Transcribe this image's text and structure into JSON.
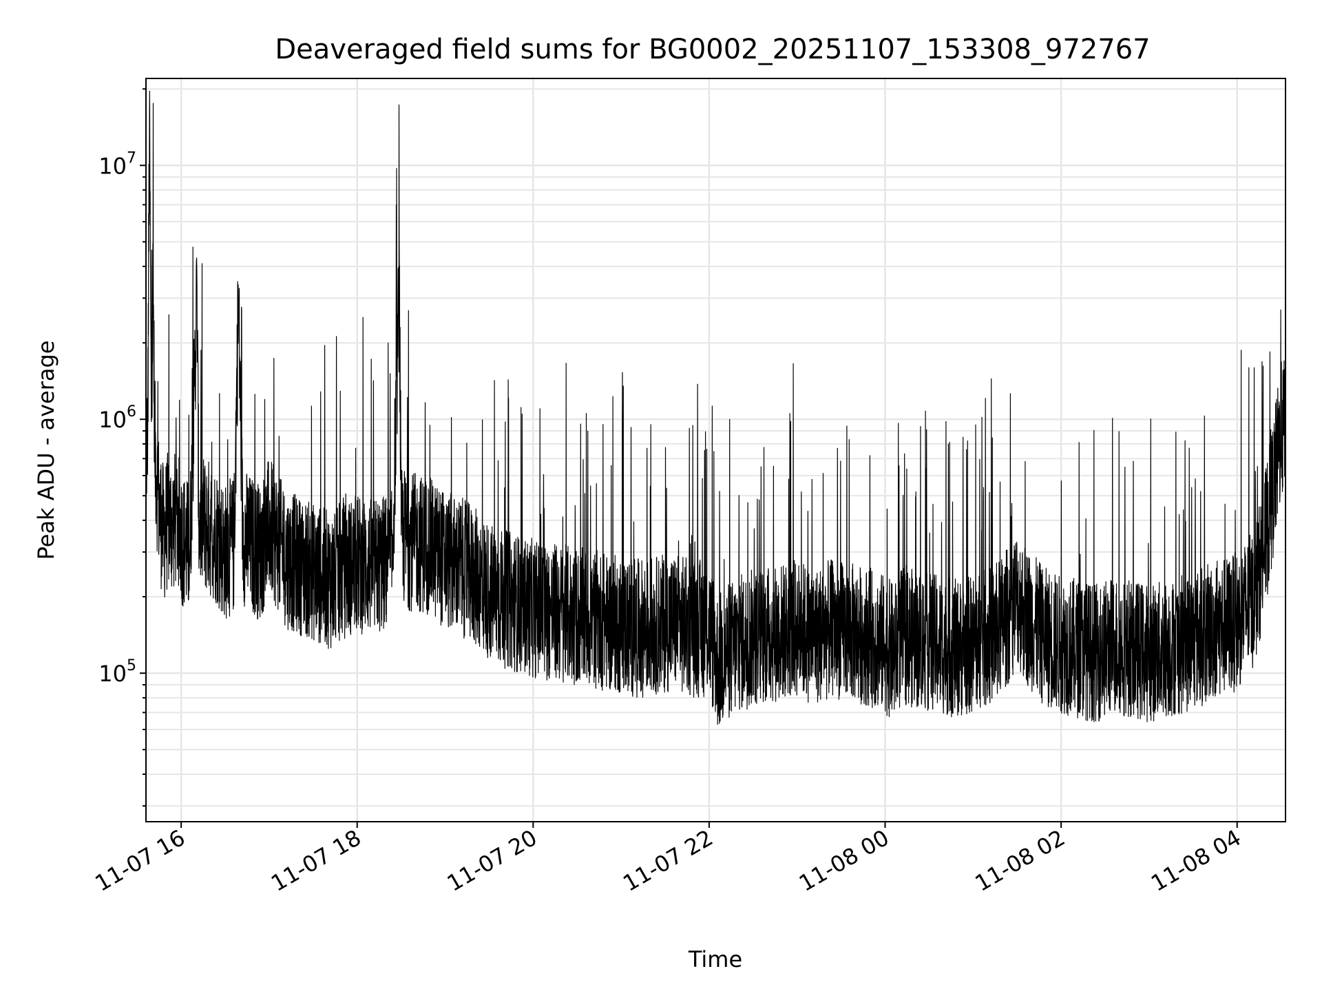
{
  "chart_data": {
    "type": "line",
    "title": "Deaveraged field sums for BG0002_20251107_153308_972767",
    "xlabel": "Time",
    "ylabel": "Peak ADU - average",
    "yscale": "log",
    "ylim": [
      26000,
      22000000
    ],
    "xlim_hours": [
      15.6,
      28.55
    ],
    "x_tick_labels": [
      "11-07 16",
      "11-07 18",
      "11-07 20",
      "11-07 22",
      "11-08 00",
      "11-08 02",
      "11-08 04"
    ],
    "x_tick_hours": [
      16,
      18,
      20,
      22,
      24,
      26,
      28
    ],
    "y_tick_exponents": [
      "5",
      "6",
      "7"
    ],
    "y_tick_values": [
      100000,
      1000000,
      10000000
    ],
    "grid": true,
    "series": [
      {
        "name": "Peak ADU - average",
        "color": "#000000",
        "x_hours": [
          15.6,
          15.62,
          15.64,
          15.66,
          15.68,
          15.7,
          15.72,
          15.75,
          15.8,
          15.85,
          15.9,
          15.95,
          16.0,
          16.1,
          16.18,
          16.2,
          16.3,
          16.4,
          16.5,
          16.6,
          16.65,
          16.7,
          16.8,
          16.9,
          17.0,
          17.2,
          17.4,
          17.6,
          17.75,
          17.8,
          18.0,
          18.2,
          18.4,
          18.48,
          18.5,
          18.6,
          18.8,
          18.9,
          19.0,
          19.2,
          19.4,
          19.5,
          19.6,
          19.8,
          20.0,
          20.2,
          20.4,
          20.6,
          20.8,
          21.0,
          21.2,
          21.4,
          21.6,
          21.8,
          22.0,
          22.1,
          22.2,
          22.4,
          22.6,
          22.8,
          23.0,
          23.2,
          23.4,
          23.6,
          23.8,
          24.0,
          24.1,
          24.2,
          24.4,
          24.6,
          24.8,
          25.0,
          25.2,
          25.3,
          25.4,
          25.5,
          25.6,
          25.8,
          26.0,
          26.2,
          26.4,
          26.6,
          26.8,
          27.0,
          27.2,
          27.4,
          27.6,
          27.8,
          28.0,
          28.2,
          28.3,
          28.4,
          28.5,
          28.55
        ],
        "values": [
          700000,
          900000,
          16000000,
          1000000,
          3600000,
          800000,
          600000,
          450000,
          350000,
          400000,
          380000,
          420000,
          350000,
          300000,
          3300000,
          400000,
          380000,
          350000,
          300000,
          320000,
          3000000,
          350000,
          320000,
          300000,
          380000,
          280000,
          260000,
          240000,
          230000,
          250000,
          270000,
          260000,
          280000,
          3500000,
          350000,
          330000,
          320000,
          300000,
          280000,
          260000,
          230000,
          210000,
          200000,
          190000,
          180000,
          175000,
          170000,
          165000,
          160000,
          155000,
          150000,
          155000,
          160000,
          150000,
          150000,
          110000,
          120000,
          135000,
          140000,
          145000,
          150000,
          140000,
          150000,
          145000,
          140000,
          130000,
          120000,
          140000,
          135000,
          130000,
          125000,
          130000,
          140000,
          150000,
          170000,
          200000,
          170000,
          140000,
          130000,
          125000,
          120000,
          130000,
          125000,
          120000,
          125000,
          130000,
          140000,
          150000,
          160000,
          200000,
          300000,
          500000,
          900000,
          950000
        ]
      }
    ]
  }
}
